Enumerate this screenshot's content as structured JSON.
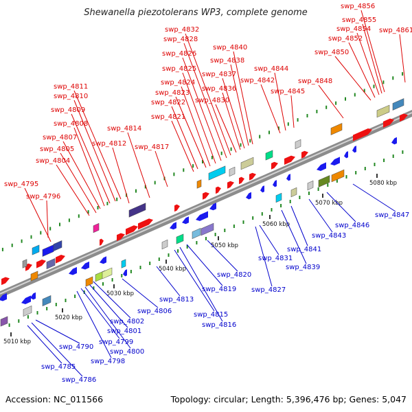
{
  "title": "Shewanella piezotolerans WP3, complete genome",
  "footer": {
    "accession": "Accession: NC_011566",
    "summary": "Topology: circular; Length: 5,396,476 bp; Genes: 5,047"
  },
  "colors": {
    "forward_label": "#dd0000",
    "reverse_label": "#0000cc",
    "forward_arrow": "#ee1111",
    "reverse_arrow": "#1a1aee",
    "backbone": "#909090",
    "tick": "#228822"
  },
  "kbp_marks": [
    "5010 kbp",
    "5020 kbp",
    "5030 kbp",
    "5040 kbp",
    "5050 kbp",
    "5060 kbp",
    "5070 kbp",
    "5080 kbp"
  ],
  "forward_genes": [
    "swp_4795",
    "swp_4796",
    "swp_4804",
    "swp_4805",
    "swp_4807",
    "swp_4808",
    "swp_4809",
    "swp_4810",
    "swp_4811",
    "swp_4812",
    "swp_4814",
    "swp_4817",
    "swp_4821",
    "swp_4822",
    "swp_4823",
    "swp_4824",
    "swp_4825",
    "swp_4826",
    "swp_4828",
    "swp_4832",
    "swp_4830",
    "swp_4836",
    "swp_4837",
    "swp_4838",
    "swp_4840",
    "swp_4842",
    "swp_4844",
    "swp_4845",
    "swp_4848",
    "swp_4850",
    "swp_4852",
    "swp_4854",
    "swp_4855",
    "swp_4856",
    "swp_4861"
  ],
  "reverse_genes": [
    "swp_4785",
    "swp_4786",
    "swp_4790",
    "swp_4798",
    "swp_4799",
    "swp_4800",
    "swp_4801",
    "swp_4802",
    "swp_4806",
    "swp_4813",
    "swp_4815",
    "swp_4816",
    "swp_4819",
    "swp_4820",
    "swp_4827",
    "swp_4831",
    "swp_4839",
    "swp_4841",
    "swp_4843",
    "swp_4846",
    "swp_4847"
  ]
}
